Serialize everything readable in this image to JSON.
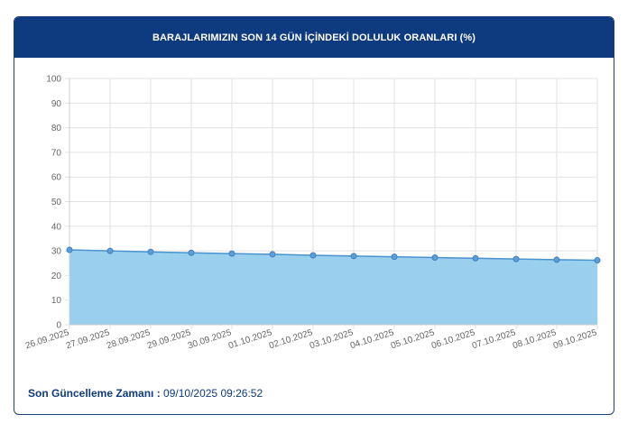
{
  "header": {
    "title": "BARAJLARIMIZIN SON 14 GÜN İÇİNDEKİ DOLULUK ORANLARI (%)"
  },
  "footer": {
    "label": "Son Güncelleme Zamanı :",
    "value": "09/10/2025 09:26:52"
  },
  "colors": {
    "header_bg": "#0e3a7f",
    "fill": "#9ad0ee",
    "line": "#4a93cf",
    "marker": "#5c9fd6"
  },
  "chart_data": {
    "type": "area",
    "title": "BARAJLARIMIZIN SON 14 GÜN İÇİNDEKİ DOLULUK ORANLARI (%)",
    "xlabel": "",
    "ylabel": "",
    "ylim": [
      0,
      100
    ],
    "yticks": [
      0,
      10,
      20,
      30,
      40,
      50,
      60,
      70,
      80,
      90,
      100
    ],
    "grid": true,
    "categories": [
      "26.09.2025",
      "27.09.2025",
      "28.09.2025",
      "29.09.2025",
      "30.09.2025",
      "01.10.2025",
      "02.10.2025",
      "03.10.2025",
      "04.10.2025",
      "05.10.2025",
      "06.10.2025",
      "07.10.2025",
      "08.10.2025",
      "09.10.2025"
    ],
    "values": [
      30.4,
      30.0,
      29.6,
      29.2,
      28.9,
      28.6,
      28.2,
      27.9,
      27.6,
      27.3,
      27.0,
      26.7,
      26.4,
      26.2
    ]
  }
}
